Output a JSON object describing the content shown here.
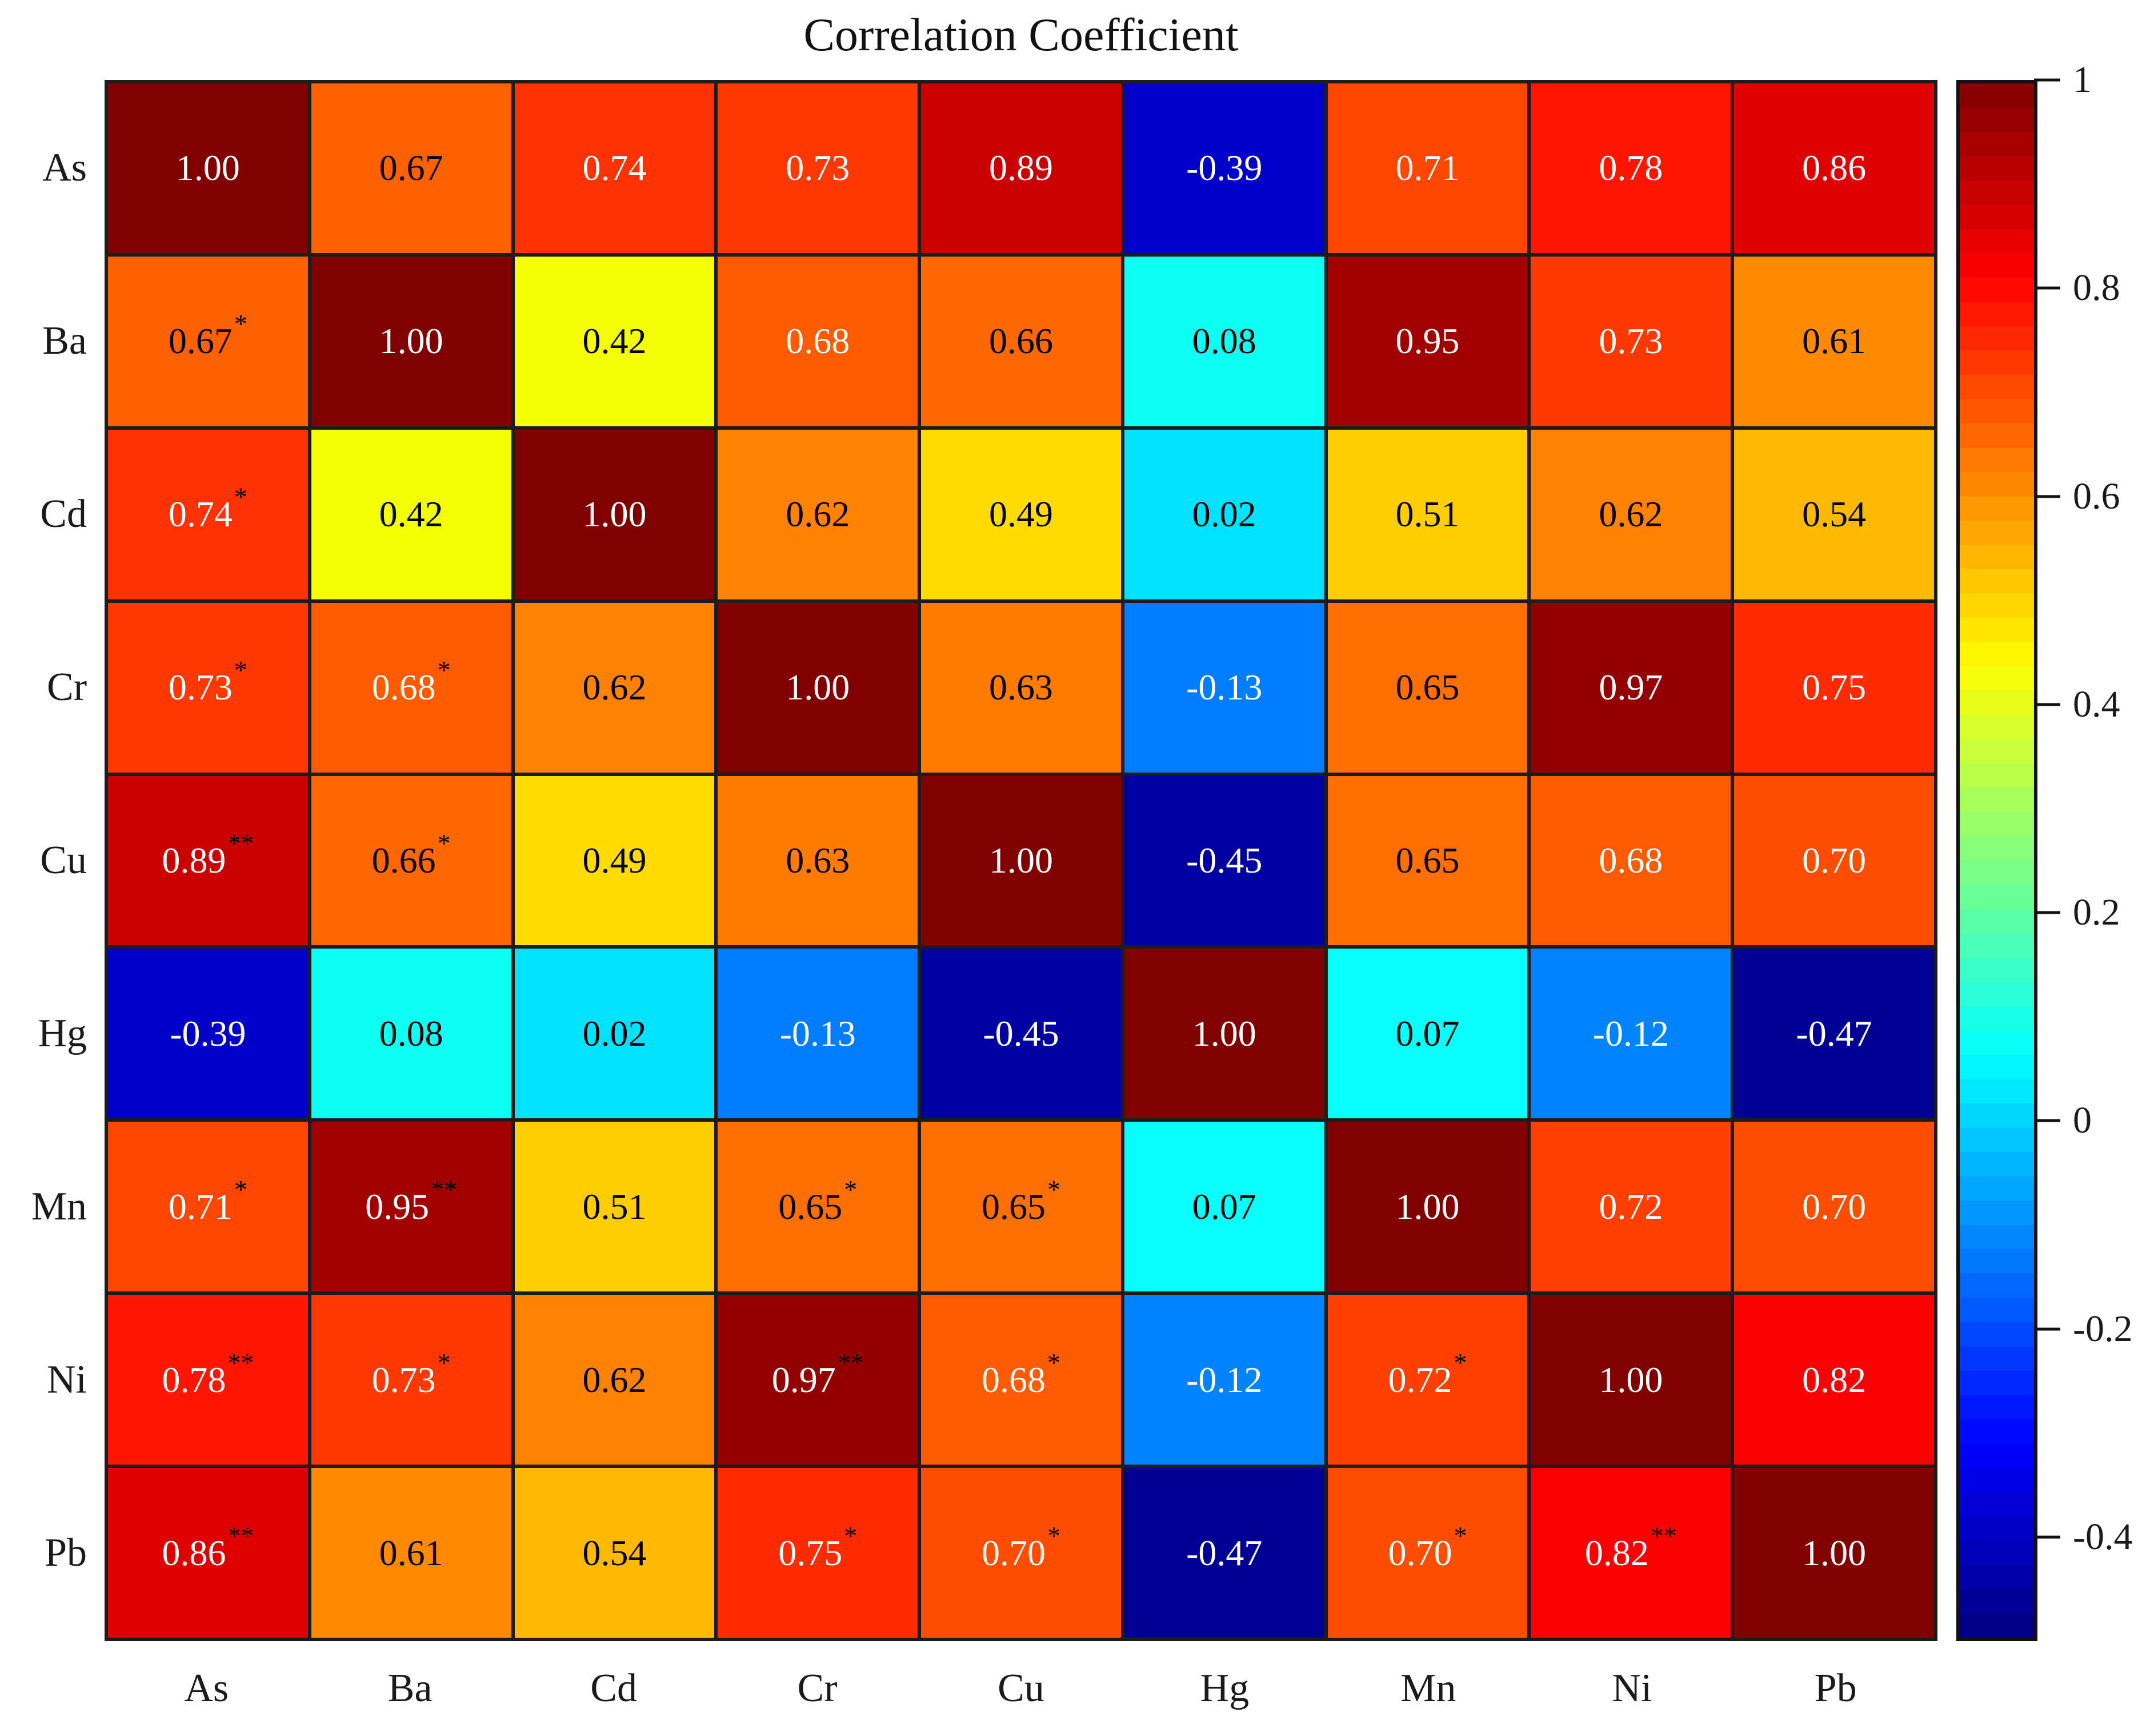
{
  "chart_data": {
    "type": "heatmap",
    "title": "Correlation Coefficient",
    "x_categories": [
      "As",
      "Ba",
      "Cd",
      "Cr",
      "Cu",
      "Hg",
      "Mn",
      "Ni",
      "Pb"
    ],
    "y_categories": [
      "As",
      "Ba",
      "Cd",
      "Cr",
      "Cu",
      "Hg",
      "Mn",
      "Ni",
      "Pb"
    ],
    "significance_marks": {
      "single": "*",
      "double": "**"
    },
    "gridline_color": "#1c1c1c",
    "rows": [
      {
        "label": "As",
        "cells": [
          {
            "t": "1.00",
            "s": "",
            "v": 1.0,
            "bg": "#800000",
            "fg": "#FFFFFF"
          },
          {
            "t": "0.67",
            "s": "",
            "v": 0.67,
            "bg": "#FF6100",
            "fg": "#000000"
          },
          {
            "t": "0.74",
            "s": "",
            "v": 0.74,
            "bg": "#FF3100",
            "fg": "#FFFFFF"
          },
          {
            "t": "0.73",
            "s": "",
            "v": 0.73,
            "bg": "#FF3800",
            "fg": "#FFFFFF"
          },
          {
            "t": "0.89",
            "s": "",
            "v": 0.89,
            "bg": "#CA0000",
            "fg": "#FFFFFF"
          },
          {
            "t": "-0.39",
            "s": "",
            "v": -0.39,
            "bg": "#0000CA",
            "fg": "#FFFFFF"
          },
          {
            "t": "0.71",
            "s": "",
            "v": 0.71,
            "bg": "#FF4600",
            "fg": "#FFFFFF"
          },
          {
            "t": "0.78",
            "s": "",
            "v": 0.78,
            "bg": "#FF1600",
            "fg": "#FFFFFF"
          },
          {
            "t": "0.86",
            "s": "",
            "v": 0.86,
            "bg": "#DF0000",
            "fg": "#FFFFFF"
          }
        ]
      },
      {
        "label": "Ba",
        "cells": [
          {
            "t": "0.67",
            "s": "*",
            "v": 0.67,
            "bg": "#FF6100",
            "fg": "#000000"
          },
          {
            "t": "1.00",
            "s": "",
            "v": 1.0,
            "bg": "#800000",
            "fg": "#FFFFFF"
          },
          {
            "t": "0.42",
            "s": "",
            "v": 0.42,
            "bg": "#F3FF00",
            "fg": "#000000"
          },
          {
            "t": "0.68",
            "s": "",
            "v": 0.68,
            "bg": "#FF5A00",
            "fg": "#FFFFFF"
          },
          {
            "t": "0.66",
            "s": "",
            "v": 0.66,
            "bg": "#FF6800",
            "fg": "#000000"
          },
          {
            "t": "0.08",
            "s": "",
            "v": 0.08,
            "bg": "#0CFFF3",
            "fg": "#000000"
          },
          {
            "t": "0.95",
            "s": "",
            "v": 0.95,
            "bg": "#A20000",
            "fg": "#FFFFFF"
          },
          {
            "t": "0.73",
            "s": "",
            "v": 0.73,
            "bg": "#FF3800",
            "fg": "#FFFFFF"
          },
          {
            "t": "0.61",
            "s": "",
            "v": 0.61,
            "bg": "#FF8A00",
            "fg": "#000000"
          }
        ]
      },
      {
        "label": "Cd",
        "cells": [
          {
            "t": "0.74",
            "s": "*",
            "v": 0.74,
            "bg": "#FF3100",
            "fg": "#FFFFFF"
          },
          {
            "t": "0.42",
            "s": "",
            "v": 0.42,
            "bg": "#F3FF00",
            "fg": "#000000"
          },
          {
            "t": "1.00",
            "s": "",
            "v": 1.0,
            "bg": "#800000",
            "fg": "#FFFFFF"
          },
          {
            "t": "0.62",
            "s": "",
            "v": 0.62,
            "bg": "#FF8300",
            "fg": "#000000"
          },
          {
            "t": "0.49",
            "s": "",
            "v": 0.49,
            "bg": "#FFDB00",
            "fg": "#000000"
          },
          {
            "t": "0.02",
            "s": "",
            "v": 0.02,
            "bg": "#00E2FF",
            "fg": "#000000"
          },
          {
            "t": "0.51",
            "s": "",
            "v": 0.51,
            "bg": "#FFCE00",
            "fg": "#000000"
          },
          {
            "t": "0.62",
            "s": "",
            "v": 0.62,
            "bg": "#FF8300",
            "fg": "#000000"
          },
          {
            "t": "0.54",
            "s": "",
            "v": 0.54,
            "bg": "#FFB900",
            "fg": "#000000"
          }
        ]
      },
      {
        "label": "Cr",
        "cells": [
          {
            "t": "0.73",
            "s": "*",
            "v": 0.73,
            "bg": "#FF3800",
            "fg": "#FFFFFF"
          },
          {
            "t": "0.68",
            "s": "*",
            "v": 0.68,
            "bg": "#FF5A00",
            "fg": "#FFFFFF"
          },
          {
            "t": "0.62",
            "s": "",
            "v": 0.62,
            "bg": "#FF8300",
            "fg": "#000000"
          },
          {
            "t": "1.00",
            "s": "",
            "v": 1.0,
            "bg": "#800000",
            "fg": "#FFFFFF"
          },
          {
            "t": "0.63",
            "s": "",
            "v": 0.63,
            "bg": "#FF7C00",
            "fg": "#000000"
          },
          {
            "t": "-0.13",
            "s": "",
            "v": -0.13,
            "bg": "#007CFF",
            "fg": "#FFFFFF"
          },
          {
            "t": "0.65",
            "s": "",
            "v": 0.65,
            "bg": "#FF6F00",
            "fg": "#000000"
          },
          {
            "t": "0.97",
            "s": "",
            "v": 0.97,
            "bg": "#940000",
            "fg": "#FFFFFF"
          },
          {
            "t": "0.75",
            "s": "",
            "v": 0.75,
            "bg": "#FF2B00",
            "fg": "#FFFFFF"
          }
        ]
      },
      {
        "label": "Cu",
        "cells": [
          {
            "t": "0.89",
            "s": "**",
            "v": 0.89,
            "bg": "#CA0000",
            "fg": "#FFFFFF"
          },
          {
            "t": "0.66",
            "s": "*",
            "v": 0.66,
            "bg": "#FF6800",
            "fg": "#000000"
          },
          {
            "t": "0.49",
            "s": "",
            "v": 0.49,
            "bg": "#FFDB00",
            "fg": "#000000"
          },
          {
            "t": "0.63",
            "s": "",
            "v": 0.63,
            "bg": "#FF7C00",
            "fg": "#000000"
          },
          {
            "t": "1.00",
            "s": "",
            "v": 1.0,
            "bg": "#800000",
            "fg": "#FFFFFF"
          },
          {
            "t": "-0.45",
            "s": "",
            "v": -0.45,
            "bg": "#0000A2",
            "fg": "#FFFFFF"
          },
          {
            "t": "0.65",
            "s": "",
            "v": 0.65,
            "bg": "#FF6F00",
            "fg": "#000000"
          },
          {
            "t": "0.68",
            "s": "",
            "v": 0.68,
            "bg": "#FF5A00",
            "fg": "#FFFFFF"
          },
          {
            "t": "0.70",
            "s": "",
            "v": 0.7,
            "bg": "#FF4D00",
            "fg": "#FFFFFF"
          }
        ]
      },
      {
        "label": "Hg",
        "cells": [
          {
            "t": "-0.39",
            "s": "",
            "v": -0.39,
            "bg": "#0000CA",
            "fg": "#FFFFFF"
          },
          {
            "t": "0.08",
            "s": "",
            "v": 0.08,
            "bg": "#0CFFF3",
            "fg": "#000000"
          },
          {
            "t": "0.02",
            "s": "",
            "v": 0.02,
            "bg": "#00E2FF",
            "fg": "#000000"
          },
          {
            "t": "-0.13",
            "s": "",
            "v": -0.13,
            "bg": "#007CFF",
            "fg": "#FFFFFF"
          },
          {
            "t": "-0.45",
            "s": "",
            "v": -0.45,
            "bg": "#0000A2",
            "fg": "#FFFFFF"
          },
          {
            "t": "1.00",
            "s": "",
            "v": 1.0,
            "bg": "#800000",
            "fg": "#FFFFFF"
          },
          {
            "t": "0.07",
            "s": "",
            "v": 0.07,
            "bg": "#05FFFA",
            "fg": "#000000"
          },
          {
            "t": "-0.12",
            "s": "",
            "v": -0.12,
            "bg": "#0083FF",
            "fg": "#FFFFFF"
          },
          {
            "t": "-0.47",
            "s": "",
            "v": -0.47,
            "bg": "#000094",
            "fg": "#FFFFFF"
          }
        ]
      },
      {
        "label": "Mn",
        "cells": [
          {
            "t": "0.71",
            "s": "*",
            "v": 0.71,
            "bg": "#FF4600",
            "fg": "#FFFFFF"
          },
          {
            "t": "0.95",
            "s": "**",
            "v": 0.95,
            "bg": "#A20000",
            "fg": "#FFFFFF"
          },
          {
            "t": "0.51",
            "s": "",
            "v": 0.51,
            "bg": "#FFCE00",
            "fg": "#000000"
          },
          {
            "t": "0.65",
            "s": "*",
            "v": 0.65,
            "bg": "#FF6F00",
            "fg": "#000000"
          },
          {
            "t": "0.65",
            "s": "*",
            "v": 0.65,
            "bg": "#FF6F00",
            "fg": "#000000"
          },
          {
            "t": "0.07",
            "s": "",
            "v": 0.07,
            "bg": "#05FFFA",
            "fg": "#000000"
          },
          {
            "t": "1.00",
            "s": "",
            "v": 1.0,
            "bg": "#800000",
            "fg": "#FFFFFF"
          },
          {
            "t": "0.72",
            "s": "",
            "v": 0.72,
            "bg": "#FF3F00",
            "fg": "#FFFFFF"
          },
          {
            "t": "0.70",
            "s": "",
            "v": 0.7,
            "bg": "#FF4D00",
            "fg": "#FFFFFF"
          }
        ]
      },
      {
        "label": "Ni",
        "cells": [
          {
            "t": "0.78",
            "s": "**",
            "v": 0.78,
            "bg": "#FF1600",
            "fg": "#FFFFFF"
          },
          {
            "t": "0.73",
            "s": "*",
            "v": 0.73,
            "bg": "#FF3800",
            "fg": "#FFFFFF"
          },
          {
            "t": "0.62",
            "s": "",
            "v": 0.62,
            "bg": "#FF8300",
            "fg": "#000000"
          },
          {
            "t": "0.97",
            "s": "**",
            "v": 0.97,
            "bg": "#940000",
            "fg": "#FFFFFF"
          },
          {
            "t": "0.68",
            "s": "*",
            "v": 0.68,
            "bg": "#FF5A00",
            "fg": "#FFFFFF"
          },
          {
            "t": "-0.12",
            "s": "",
            "v": -0.12,
            "bg": "#0083FF",
            "fg": "#FFFFFF"
          },
          {
            "t": "0.72",
            "s": "*",
            "v": 0.72,
            "bg": "#FF3F00",
            "fg": "#FFFFFF"
          },
          {
            "t": "1.00",
            "s": "",
            "v": 1.0,
            "bg": "#800000",
            "fg": "#FFFFFF"
          },
          {
            "t": "0.82",
            "s": "",
            "v": 0.82,
            "bg": "#FA0000",
            "fg": "#FFFFFF"
          }
        ]
      },
      {
        "label": "Pb",
        "cells": [
          {
            "t": "0.86",
            "s": "**",
            "v": 0.86,
            "bg": "#DF0000",
            "fg": "#FFFFFF"
          },
          {
            "t": "0.61",
            "s": "",
            "v": 0.61,
            "bg": "#FF8A00",
            "fg": "#000000"
          },
          {
            "t": "0.54",
            "s": "",
            "v": 0.54,
            "bg": "#FFB900",
            "fg": "#000000"
          },
          {
            "t": "0.75",
            "s": "*",
            "v": 0.75,
            "bg": "#FF2B00",
            "fg": "#FFFFFF"
          },
          {
            "t": "0.70",
            "s": "*",
            "v": 0.7,
            "bg": "#FF4D00",
            "fg": "#FFFFFF"
          },
          {
            "t": "-0.47",
            "s": "",
            "v": -0.47,
            "bg": "#000094",
            "fg": "#FFFFFF"
          },
          {
            "t": "0.70",
            "s": "*",
            "v": 0.7,
            "bg": "#FF4D00",
            "fg": "#FFFFFF"
          },
          {
            "t": "0.82",
            "s": "**",
            "v": 0.82,
            "bg": "#FA0000",
            "fg": "#FFFFFF"
          },
          {
            "t": "1.00",
            "s": "",
            "v": 1.0,
            "bg": "#800000",
            "fg": "#FFFFFF"
          }
        ]
      }
    ],
    "colorbar": {
      "range": [
        -0.5,
        1
      ],
      "bands": 64,
      "colormap": "jet",
      "stops": [
        [
          0.0,
          "#000080"
        ],
        [
          0.125,
          "#0000FF"
        ],
        [
          0.375,
          "#00FFFF"
        ],
        [
          0.625,
          "#FFFF00"
        ],
        [
          0.875,
          "#FF0000"
        ],
        [
          1.0,
          "#800000"
        ]
      ],
      "ticks": [
        {
          "label": "1",
          "v": 1
        },
        {
          "label": "0.8",
          "v": 0.8
        },
        {
          "label": "0.6",
          "v": 0.6
        },
        {
          "label": "0.4",
          "v": 0.4
        },
        {
          "label": "0.2",
          "v": 0.2
        },
        {
          "label": "0",
          "v": 0
        },
        {
          "label": "-0.2",
          "v": -0.2
        },
        {
          "label": "-0.4",
          "v": -0.4
        }
      ]
    }
  }
}
